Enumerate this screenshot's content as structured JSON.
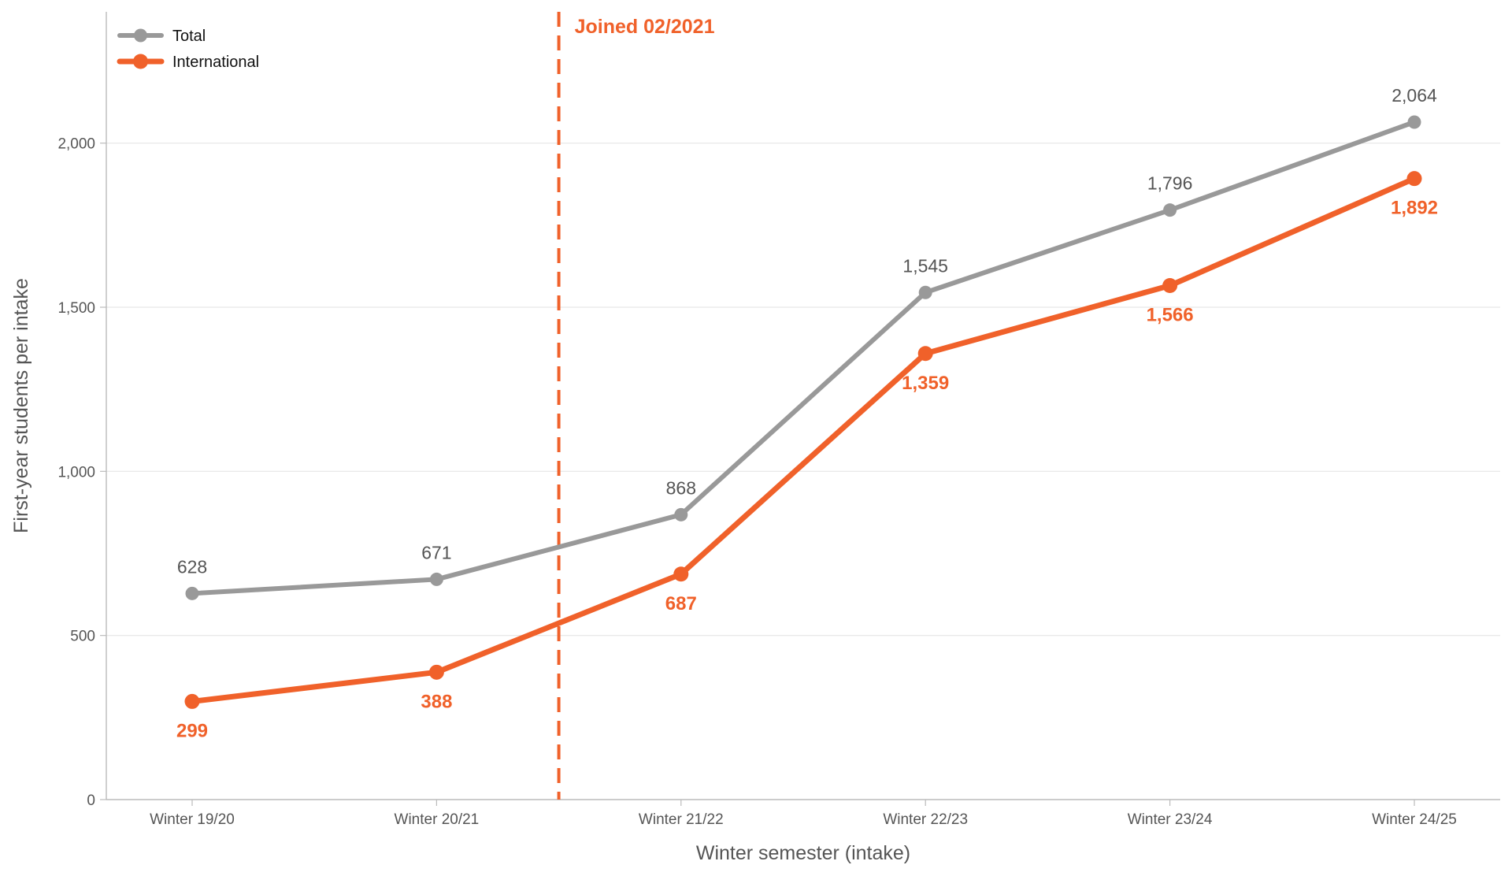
{
  "chart_data": {
    "type": "line",
    "categories": [
      "Winter 19/20",
      "Winter 20/21",
      "Winter 21/22",
      "Winter 22/23",
      "Winter 23/24",
      "Winter 24/25"
    ],
    "series": [
      {
        "name": "Total",
        "values": [
          628,
          671,
          868,
          1545,
          1796,
          2064
        ],
        "labels": [
          "628",
          "671",
          "868",
          "1,545",
          "1,796",
          "2,064"
        ],
        "color": "#999999"
      },
      {
        "name": "International",
        "values": [
          299,
          388,
          687,
          1359,
          1566,
          1892
        ],
        "labels": [
          "299",
          "388",
          "687",
          "1,359",
          "1,566",
          "1,892"
        ],
        "color": "#f0612a"
      }
    ],
    "xlabel": "Winter semester (intake)",
    "ylabel": "First-year students per intake",
    "ylim": [
      0,
      2400
    ],
    "yticks": [
      0,
      500,
      1000,
      1500,
      2000
    ],
    "ytick_labels": [
      "0",
      "500",
      "1,000",
      "1,500",
      "2,000"
    ],
    "grid": "horizontal",
    "legend": "top-left",
    "annotation": {
      "text": "Joined 02/2021",
      "between": [
        "Winter 20/21",
        "Winter 21/22"
      ],
      "fraction": 0.5,
      "style": "dashed vertical line",
      "color": "#f0612a"
    }
  }
}
